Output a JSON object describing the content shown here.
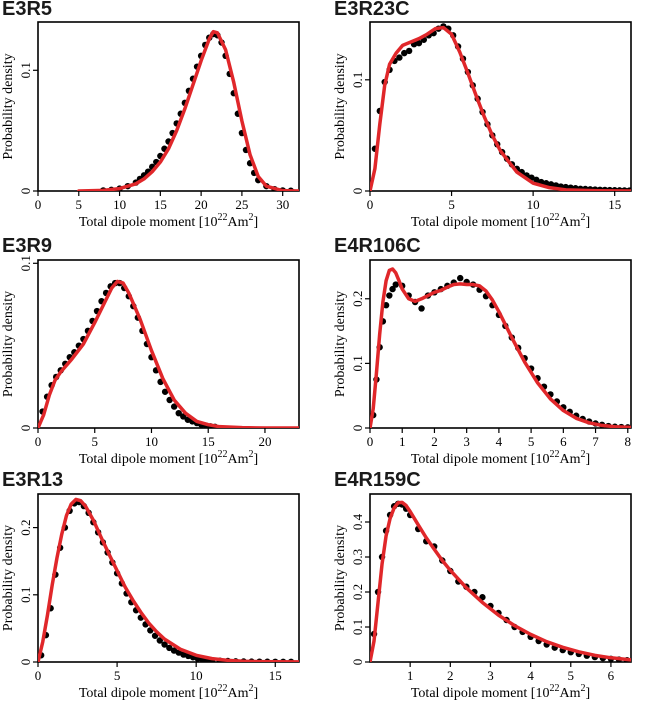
{
  "colors": {
    "model_curve": "#e0272a",
    "data_points": "#000000"
  },
  "chart_data": [
    {
      "type": "scatter+line",
      "title": "E3R5",
      "xlabel": "Total dipole moment [10",
      "xlabel_sup": "22",
      "xlabel_unit": "Am",
      "xlabel_unit_sup": "2",
      "xlabel_end": "]",
      "ylabel": "Probability density",
      "xlim": [
        0,
        32
      ],
      "ylim": [
        0,
        0.14
      ],
      "xticks": [
        0,
        5,
        10,
        15,
        20,
        25,
        30
      ],
      "yticks": [
        0,
        0.1
      ],
      "ytick_labels": [
        "0",
        "0.1"
      ],
      "points": {
        "x": [
          8,
          9,
          10,
          11,
          12,
          12.5,
          13,
          13.5,
          14,
          14.5,
          15,
          15.5,
          16,
          16.5,
          17,
          17.5,
          18,
          18.5,
          19,
          19.5,
          20,
          20.5,
          21,
          21.5,
          22,
          22.5,
          23,
          23.5,
          24,
          24.5,
          25,
          25.5,
          26,
          26.5,
          27,
          28,
          29,
          30,
          31
        ],
        "y": [
          0.0005,
          0.001,
          0.002,
          0.004,
          0.007,
          0.01,
          0.013,
          0.016,
          0.02,
          0.024,
          0.029,
          0.035,
          0.041,
          0.048,
          0.056,
          0.064,
          0.073,
          0.083,
          0.093,
          0.103,
          0.112,
          0.121,
          0.127,
          0.13,
          0.129,
          0.123,
          0.112,
          0.097,
          0.081,
          0.064,
          0.048,
          0.034,
          0.023,
          0.015,
          0.009,
          0.004,
          0.0015,
          0.0005,
          0.0002
        ]
      },
      "curve": {
        "x": [
          5,
          8,
          10,
          12,
          13,
          14,
          15,
          16,
          17,
          18,
          19,
          20,
          21,
          21.5,
          22,
          23,
          24,
          25,
          26,
          27,
          28,
          30,
          32
        ],
        "y": [
          0,
          0.0005,
          0.002,
          0.006,
          0.01,
          0.016,
          0.024,
          0.035,
          0.05,
          0.068,
          0.088,
          0.108,
          0.126,
          0.132,
          0.131,
          0.117,
          0.09,
          0.058,
          0.03,
          0.012,
          0.004,
          0.0003,
          0
        ]
      }
    },
    {
      "type": "scatter+line",
      "title": "E3R23C",
      "xlabel": "Total dipole moment [10",
      "xlabel_sup": "22",
      "xlabel_unit": "Am",
      "xlabel_unit_sup": "2",
      "xlabel_end": "]",
      "ylabel": "Probability density",
      "xlim": [
        0,
        16
      ],
      "ylim": [
        0,
        0.152
      ],
      "xticks": [
        0,
        5,
        10,
        15
      ],
      "yticks": [
        0,
        0.1
      ],
      "ytick_labels": [
        "0",
        "0.1"
      ],
      "points": {
        "x": [
          0.3,
          0.6,
          0.9,
          1.2,
          1.5,
          1.8,
          2.1,
          2.4,
          2.7,
          3.0,
          3.3,
          3.6,
          3.9,
          4.2,
          4.5,
          4.8,
          5.1,
          5.4,
          5.7,
          6.0,
          6.3,
          6.6,
          6.9,
          7.2,
          7.5,
          7.8,
          8.1,
          8.4,
          8.7,
          9.0,
          9.3,
          9.6,
          9.9,
          10.2,
          10.5,
          10.8,
          11.1,
          11.4,
          11.7,
          12.0,
          12.3,
          12.6,
          12.9,
          13.2,
          13.5,
          13.8,
          14.1,
          14.4,
          14.7,
          15.0,
          15.3,
          15.6,
          15.9
        ],
        "y": [
          0.038,
          0.072,
          0.098,
          0.109,
          0.117,
          0.12,
          0.124,
          0.126,
          0.132,
          0.133,
          0.136,
          0.14,
          0.142,
          0.146,
          0.148,
          0.146,
          0.14,
          0.13,
          0.119,
          0.107,
          0.095,
          0.083,
          0.071,
          0.06,
          0.05,
          0.042,
          0.035,
          0.029,
          0.024,
          0.02,
          0.017,
          0.014,
          0.012,
          0.01,
          0.008,
          0.007,
          0.006,
          0.005,
          0.004,
          0.0035,
          0.003,
          0.0025,
          0.002,
          0.0018,
          0.0015,
          0.0013,
          0.0011,
          0.001,
          0.0008,
          0.0007,
          0.0006,
          0.0005,
          0.0004
        ]
      },
      "curve": {
        "x": [
          0,
          0.3,
          0.6,
          0.9,
          1.2,
          1.6,
          2.0,
          2.5,
          3.0,
          3.5,
          4.0,
          4.5,
          5.0,
          5.5,
          6.0,
          6.5,
          7.0,
          7.5,
          8.0,
          9.0,
          10.0,
          11.0,
          12.0,
          14.0,
          16.0
        ],
        "y": [
          0,
          0.02,
          0.06,
          0.095,
          0.114,
          0.124,
          0.131,
          0.134,
          0.137,
          0.141,
          0.146,
          0.147,
          0.141,
          0.125,
          0.106,
          0.086,
          0.067,
          0.05,
          0.036,
          0.017,
          0.007,
          0.003,
          0.001,
          0.0002,
          0
        ]
      }
    },
    {
      "type": "scatter+line",
      "title": "E3R9",
      "xlabel": "Total dipole moment [10",
      "xlabel_sup": "22",
      "xlabel_unit": "Am",
      "xlabel_unit_sup": "2",
      "xlabel_end": "]",
      "ylabel": "Probability density",
      "xlim": [
        0,
        23
      ],
      "ylim": [
        0,
        0.102
      ],
      "xticks": [
        0,
        5,
        10,
        15,
        20
      ],
      "yticks": [
        0,
        0.1
      ],
      "ytick_labels": [
        "0",
        "0.1"
      ],
      "points": {
        "x": [
          0.4,
          0.8,
          1.2,
          1.6,
          2.0,
          2.4,
          2.8,
          3.2,
          3.6,
          4.0,
          4.4,
          4.8,
          5.2,
          5.6,
          6.0,
          6.4,
          6.8,
          7.2,
          7.6,
          8.0,
          8.4,
          8.8,
          9.2,
          9.6,
          10.0,
          10.4,
          10.8,
          11.2,
          11.6,
          12.0,
          12.4,
          12.8,
          13.2,
          13.6,
          14.0,
          14.4,
          14.8,
          15.2,
          15.6
        ],
        "y": [
          0.01,
          0.019,
          0.026,
          0.031,
          0.035,
          0.039,
          0.043,
          0.046,
          0.05,
          0.054,
          0.059,
          0.065,
          0.071,
          0.077,
          0.082,
          0.086,
          0.088,
          0.088,
          0.085,
          0.08,
          0.074,
          0.067,
          0.059,
          0.051,
          0.043,
          0.035,
          0.028,
          0.022,
          0.017,
          0.013,
          0.009,
          0.007,
          0.005,
          0.004,
          0.003,
          0.002,
          0.0015,
          0.001,
          0.0007
        ]
      },
      "curve": {
        "x": [
          0,
          0.5,
          1.0,
          1.5,
          2.0,
          3.0,
          4.0,
          5.0,
          6.0,
          6.5,
          7.0,
          7.5,
          8.0,
          9.0,
          10.0,
          11.0,
          12.0,
          13.0,
          14.0,
          15.0,
          16.0,
          18.0,
          20.0,
          23.0
        ],
        "y": [
          0,
          0.008,
          0.02,
          0.029,
          0.034,
          0.042,
          0.051,
          0.064,
          0.078,
          0.085,
          0.089,
          0.088,
          0.082,
          0.066,
          0.047,
          0.03,
          0.017,
          0.009,
          0.004,
          0.002,
          0.0008,
          0.0002,
          0,
          0
        ]
      }
    },
    {
      "type": "scatter+line",
      "title": "E4R106C",
      "xlabel": "Total dipole moment [10",
      "xlabel_sup": "22",
      "xlabel_unit": "Am",
      "xlabel_unit_sup": "2",
      "xlabel_end": "]",
      "ylabel": "Probability density",
      "xlim": [
        0,
        8.1
      ],
      "ylim": [
        0,
        0.26
      ],
      "xticks": [
        0,
        1,
        2,
        3,
        4,
        5,
        6,
        7,
        8
      ],
      "yticks": [
        0,
        0.1,
        0.2
      ],
      "ytick_labels": [
        "0",
        "0.1",
        "0.2"
      ],
      "points": {
        "x": [
          0.1,
          0.2,
          0.3,
          0.4,
          0.5,
          0.6,
          0.7,
          0.8,
          1.0,
          1.2,
          1.4,
          1.6,
          1.8,
          2.0,
          2.2,
          2.4,
          2.6,
          2.8,
          3.0,
          3.2,
          3.4,
          3.6,
          3.8,
          4.0,
          4.2,
          4.4,
          4.6,
          4.8,
          5.0,
          5.2,
          5.4,
          5.6,
          5.8,
          6.0,
          6.2,
          6.4,
          6.6,
          6.8,
          7.0,
          7.2,
          7.4,
          7.6,
          7.8,
          8.0
        ],
        "y": [
          0.02,
          0.075,
          0.125,
          0.165,
          0.19,
          0.205,
          0.215,
          0.222,
          0.22,
          0.205,
          0.195,
          0.185,
          0.205,
          0.21,
          0.215,
          0.22,
          0.225,
          0.232,
          0.226,
          0.222,
          0.214,
          0.204,
          0.19,
          0.175,
          0.158,
          0.14,
          0.124,
          0.108,
          0.092,
          0.077,
          0.064,
          0.052,
          0.041,
          0.032,
          0.025,
          0.019,
          0.014,
          0.01,
          0.007,
          0.005,
          0.003,
          0.002,
          0.0015,
          0.001
        ]
      },
      "curve": {
        "x": [
          0,
          0.1,
          0.2,
          0.3,
          0.4,
          0.5,
          0.6,
          0.7,
          0.8,
          0.9,
          1.0,
          1.2,
          1.4,
          1.6,
          1.8,
          2.0,
          2.2,
          2.4,
          2.6,
          2.8,
          3.0,
          3.2,
          3.4,
          3.6,
          3.8,
          4.0,
          4.4,
          4.8,
          5.2,
          5.6,
          6.0,
          6.4,
          6.8,
          7.2,
          7.6,
          8.1
        ],
        "y": [
          0,
          0.03,
          0.085,
          0.145,
          0.195,
          0.228,
          0.244,
          0.246,
          0.24,
          0.228,
          0.215,
          0.2,
          0.196,
          0.2,
          0.205,
          0.21,
          0.213,
          0.218,
          0.222,
          0.223,
          0.222,
          0.222,
          0.22,
          0.212,
          0.198,
          0.18,
          0.14,
          0.102,
          0.07,
          0.045,
          0.027,
          0.015,
          0.008,
          0.004,
          0.002,
          0.001
        ]
      }
    },
    {
      "type": "scatter+line",
      "title": "E3R13",
      "xlabel": "Total dipole moment [10",
      "xlabel_sup": "22",
      "xlabel_unit": "Am",
      "xlabel_unit_sup": "2",
      "xlabel_end": "]",
      "ylabel": "Probability density",
      "xlim": [
        0,
        16.5
      ],
      "ylim": [
        0,
        0.25
      ],
      "xticks": [
        0,
        5,
        10,
        15
      ],
      "yticks": [
        0,
        0.1,
        0.2
      ],
      "ytick_labels": [
        "0",
        "0.1",
        "0.2"
      ],
      "points": {
        "x": [
          0.2,
          0.5,
          0.8,
          1.1,
          1.4,
          1.7,
          2.0,
          2.3,
          2.6,
          2.9,
          3.2,
          3.5,
          3.8,
          4.1,
          4.4,
          4.7,
          5.0,
          5.3,
          5.6,
          5.9,
          6.2,
          6.5,
          6.8,
          7.1,
          7.4,
          7.7,
          8.0,
          8.3,
          8.6,
          8.9,
          9.2,
          9.5,
          9.8,
          10.1,
          10.4,
          10.7,
          11.0,
          11.5,
          12.0,
          12.5,
          13.0,
          13.5,
          14.0,
          14.5,
          15.0,
          15.5,
          16.0
        ],
        "y": [
          0.01,
          0.04,
          0.08,
          0.13,
          0.17,
          0.2,
          0.225,
          0.236,
          0.238,
          0.232,
          0.222,
          0.208,
          0.193,
          0.178,
          0.163,
          0.148,
          0.132,
          0.117,
          0.102,
          0.089,
          0.077,
          0.066,
          0.056,
          0.047,
          0.039,
          0.032,
          0.026,
          0.021,
          0.017,
          0.014,
          0.011,
          0.009,
          0.007,
          0.005,
          0.004,
          0.003,
          0.0025,
          0.002,
          0.0015,
          0.001,
          0.0008,
          0.0006,
          0.0005,
          0.0004,
          0.0003,
          0.0002,
          0.0002
        ]
      },
      "curve": {
        "x": [
          0,
          0.3,
          0.6,
          0.9,
          1.2,
          1.5,
          1.8,
          2.1,
          2.4,
          2.7,
          3.0,
          3.5,
          4.0,
          4.5,
          5.0,
          5.5,
          6.0,
          6.5,
          7.0,
          7.5,
          8.0,
          9.0,
          10.0,
          11.0,
          12.0,
          13.0,
          14.0,
          15.0,
          16.5
        ],
        "y": [
          0,
          0.03,
          0.07,
          0.115,
          0.155,
          0.19,
          0.218,
          0.235,
          0.242,
          0.24,
          0.232,
          0.211,
          0.185,
          0.16,
          0.136,
          0.112,
          0.092,
          0.074,
          0.058,
          0.045,
          0.034,
          0.019,
          0.01,
          0.005,
          0.0025,
          0.0012,
          0.0006,
          0.0003,
          0.0001
        ]
      }
    },
    {
      "type": "scatter+line",
      "title": "E4R159C",
      "xlabel": "Total dipole moment [10",
      "xlabel_sup": "22",
      "xlabel_unit": "Am",
      "xlabel_unit_sup": "2",
      "xlabel_end": "]",
      "ylabel": "Probability density",
      "xlim": [
        0,
        6.5
      ],
      "ylim": [
        0,
        0.48
      ],
      "xticks": [
        1,
        2,
        3,
        4,
        5,
        6
      ],
      "yticks": [
        0,
        0.1,
        0.2,
        0.3,
        0.4
      ],
      "ytick_labels": [
        "0",
        "0.1",
        "0.2",
        "0.3",
        "0.4"
      ],
      "points": {
        "x": [
          0.1,
          0.2,
          0.3,
          0.4,
          0.5,
          0.6,
          0.7,
          0.8,
          0.9,
          1.0,
          1.2,
          1.4,
          1.6,
          1.8,
          2.0,
          2.2,
          2.4,
          2.6,
          2.8,
          3.0,
          3.2,
          3.4,
          3.6,
          3.8,
          4.0,
          4.2,
          4.4,
          4.6,
          4.8,
          5.0,
          5.2,
          5.4,
          5.6,
          5.8,
          6.0,
          6.2,
          6.4
        ],
        "y": [
          0.08,
          0.2,
          0.3,
          0.375,
          0.42,
          0.445,
          0.452,
          0.45,
          0.438,
          0.42,
          0.38,
          0.345,
          0.33,
          0.29,
          0.26,
          0.23,
          0.215,
          0.2,
          0.185,
          0.16,
          0.14,
          0.12,
          0.1,
          0.086,
          0.072,
          0.06,
          0.05,
          0.041,
          0.034,
          0.028,
          0.023,
          0.018,
          0.014,
          0.011,
          0.009,
          0.007,
          0.005
        ]
      },
      "curve": {
        "x": [
          0,
          0.1,
          0.2,
          0.3,
          0.4,
          0.5,
          0.6,
          0.7,
          0.8,
          0.9,
          1.0,
          1.2,
          1.4,
          1.6,
          1.8,
          2.0,
          2.4,
          2.8,
          3.2,
          3.6,
          4.0,
          4.4,
          4.8,
          5.2,
          5.6,
          6.0,
          6.5
        ],
        "y": [
          0,
          0.06,
          0.17,
          0.28,
          0.36,
          0.41,
          0.44,
          0.455,
          0.456,
          0.447,
          0.43,
          0.392,
          0.355,
          0.322,
          0.29,
          0.262,
          0.212,
          0.17,
          0.134,
          0.104,
          0.079,
          0.058,
          0.042,
          0.029,
          0.019,
          0.012,
          0.006
        ]
      }
    }
  ]
}
